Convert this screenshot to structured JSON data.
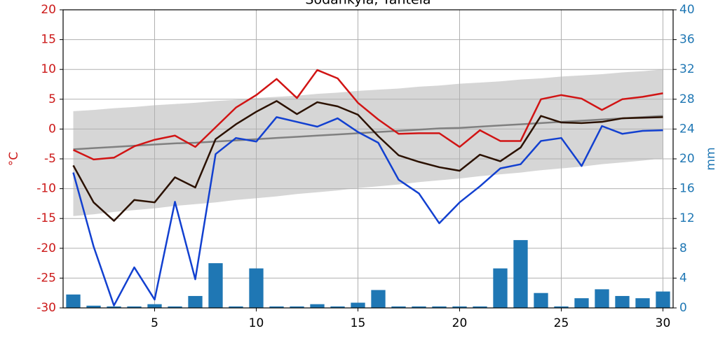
{
  "chart_data": {
    "type": "line",
    "title": "Sodankylä, Tähtelä",
    "ylabel": "°C",
    "y2label": "mm",
    "x": [
      1,
      2,
      3,
      4,
      5,
      6,
      7,
      8,
      9,
      10,
      11,
      12,
      13,
      14,
      15,
      16,
      17,
      18,
      19,
      20,
      21,
      22,
      23,
      24,
      25,
      26,
      27,
      28,
      29,
      30
    ],
    "xlim": [
      0.5,
      30.5
    ],
    "xticks": [
      5,
      10,
      15,
      20,
      25,
      30
    ],
    "ylim": [
      -30,
      20
    ],
    "yticks": [
      -30,
      -25,
      -20,
      -15,
      -10,
      -5,
      0,
      5,
      10,
      15,
      20
    ],
    "y2lim": [
      0,
      40
    ],
    "y2ticks": [
      0,
      4,
      8,
      12,
      16,
      20,
      24,
      28,
      32,
      36,
      40
    ],
    "grid": true,
    "ycolor": "#cc1a1a",
    "y2color": "#1f77b4",
    "band": {
      "color": "#cfcfcf",
      "upper": [
        3.0,
        3.2,
        3.5,
        3.7,
        4.0,
        4.2,
        4.4,
        4.7,
        4.9,
        5.2,
        5.4,
        5.6,
        5.9,
        6.1,
        6.4,
        6.6,
        6.8,
        7.1,
        7.3,
        7.6,
        7.8,
        8.0,
        8.3,
        8.5,
        8.8,
        9.0,
        9.2,
        9.5,
        9.7,
        10.0
      ],
      "lower": [
        -14.6,
        -14.3,
        -13.9,
        -13.6,
        -13.3,
        -12.9,
        -12.6,
        -12.3,
        -11.9,
        -11.6,
        -11.3,
        -10.9,
        -10.6,
        -10.3,
        -9.9,
        -9.6,
        -9.3,
        -8.9,
        -8.6,
        -8.3,
        -7.9,
        -7.6,
        -7.3,
        -6.9,
        -6.6,
        -6.3,
        -5.9,
        -5.6,
        -5.3,
        -4.9
      ]
    },
    "series": [
      {
        "type": "bar",
        "axis": "y2",
        "color": "#1f77b4",
        "values": [
          1.8,
          0.3,
          0.2,
          0.2,
          0.5,
          0.2,
          1.6,
          6.0,
          0.2,
          5.3,
          0.2,
          0.2,
          0.5,
          0.2,
          0.7,
          2.4,
          0.2,
          0.2,
          0.2,
          0.2,
          0.2,
          5.3,
          9.1,
          2.0,
          0.2,
          1.3,
          2.5,
          1.6,
          1.3,
          2.2
        ]
      },
      {
        "type": "line",
        "color": "#808080",
        "values": [
          -3.4,
          -3.2,
          -3.0,
          -2.8,
          -2.6,
          -2.4,
          -2.3,
          -2.1,
          -1.9,
          -1.7,
          -1.5,
          -1.3,
          -1.1,
          -0.9,
          -0.7,
          -0.5,
          -0.3,
          -0.1,
          0.1,
          0.2,
          0.4,
          0.6,
          0.8,
          1.0,
          1.2,
          1.4,
          1.6,
          1.8,
          2.0,
          2.2
        ]
      },
      {
        "type": "line",
        "color": "#d11414",
        "values": [
          -3.5,
          -5.1,
          -4.8,
          -2.9,
          -1.8,
          -1.1,
          -3.0,
          0.3,
          3.6,
          5.7,
          8.4,
          5.2,
          9.9,
          8.5,
          4.4,
          1.6,
          -0.8,
          -0.7,
          -0.7,
          -3.0,
          -0.2,
          -2.0,
          -2.0,
          5.0,
          5.7,
          5.1,
          3.2,
          5.0,
          5.4,
          6.0
        ]
      },
      {
        "type": "line",
        "color": "#1240d0",
        "values": [
          -7.3,
          -19.7,
          -29.6,
          -23.2,
          -28.6,
          -12.2,
          -25.2,
          -4.2,
          -1.5,
          -2.1,
          2.0,
          1.2,
          0.4,
          1.8,
          -0.5,
          -2.3,
          -8.5,
          -10.8,
          -15.8,
          -12.3,
          -9.6,
          -6.6,
          -5.9,
          -2.0,
          -1.5,
          -6.2,
          0.5,
          -0.8,
          -0.3,
          -0.2
        ]
      },
      {
        "type": "line",
        "color": "#2b1100",
        "values": [
          -6.1,
          -12.3,
          -15.4,
          -11.9,
          -12.3,
          -8.1,
          -9.8,
          -1.7,
          0.8,
          2.9,
          4.7,
          2.5,
          4.5,
          3.8,
          2.4,
          -1.2,
          -4.4,
          -5.5,
          -6.4,
          -7.0,
          -4.3,
          -5.4,
          -3.1,
          2.2,
          1.1,
          1.0,
          1.2,
          1.8,
          1.9,
          2.0
        ]
      }
    ]
  }
}
